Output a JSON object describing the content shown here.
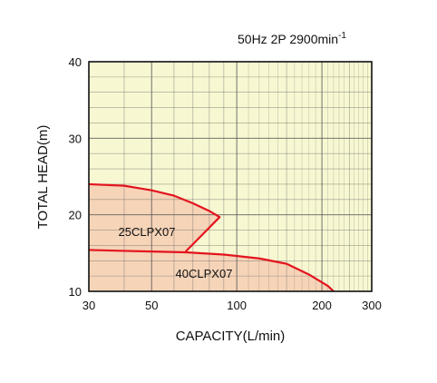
{
  "chart_data": {
    "type": "area",
    "title": "50Hz 2P 2900min",
    "title_superscript": "-1",
    "xlabel": "CAPACITY(L/min)",
    "ylabel": "TOTAL HEAD(m)",
    "x_scale": "log",
    "xlim": [
      30,
      300
    ],
    "ylim": [
      10,
      40
    ],
    "x_tick_labels": [
      "30",
      "50",
      "100",
      "200",
      "300"
    ],
    "x_ticks": [
      30,
      50,
      100,
      200,
      300
    ],
    "y_tick_labels": [
      "10",
      "20",
      "30",
      "40"
    ],
    "y_ticks": [
      10,
      20,
      30,
      40
    ],
    "grid": true,
    "colors": {
      "plot_background": "#f7f7d2",
      "fill": "#f6d4b8",
      "curve": "#e3141e",
      "grid": "#555555",
      "frame": "#111111"
    },
    "series": [
      {
        "name": "25CLPX07",
        "x": [
          30,
          40,
          50,
          60,
          70,
          80,
          87
        ],
        "y": [
          24.0,
          23.8,
          23.2,
          22.5,
          21.5,
          20.5,
          19.7
        ],
        "drop_to": [
          66,
          15.2
        ]
      },
      {
        "name": "40CLPX07",
        "x": [
          30,
          50,
          66,
          90,
          120,
          150,
          180,
          210,
          220
        ],
        "y": [
          15.4,
          15.2,
          15.1,
          14.8,
          14.3,
          13.6,
          12.2,
          10.7,
          10.0
        ]
      }
    ]
  }
}
